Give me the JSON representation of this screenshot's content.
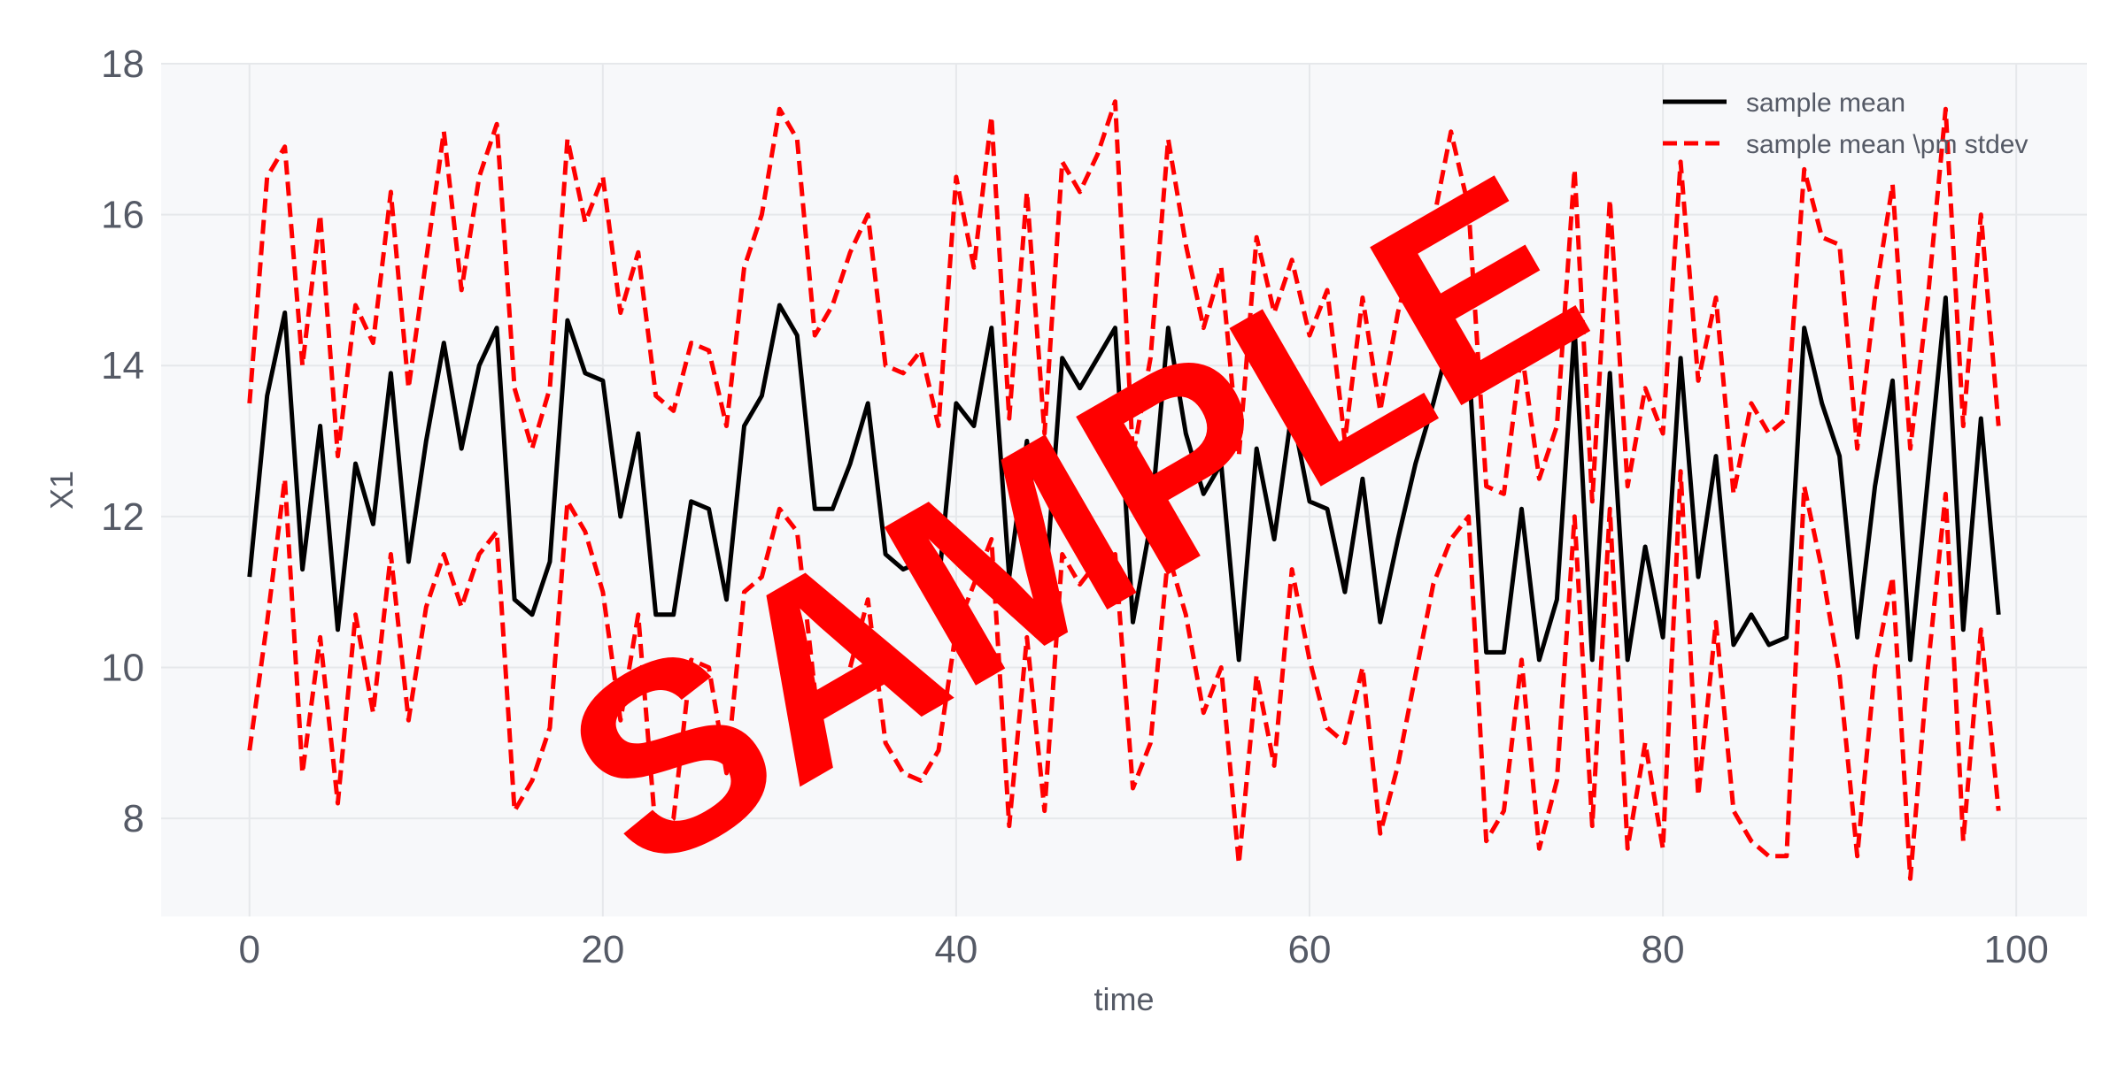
{
  "chart_data": {
    "type": "line",
    "title": "",
    "xlabel": "time",
    "ylabel": "X1",
    "xlim": [
      -5,
      104
    ],
    "ylim": [
      6.7,
      18
    ],
    "xticks": [
      0,
      20,
      40,
      60,
      80,
      100
    ],
    "yticks": [
      8,
      10,
      12,
      14,
      16,
      18
    ],
    "grid": true,
    "legend_position": "top-right",
    "x": [
      0,
      1,
      2,
      3,
      4,
      5,
      6,
      7,
      8,
      9,
      10,
      11,
      12,
      13,
      14,
      15,
      16,
      17,
      18,
      19,
      20,
      21,
      22,
      23,
      24,
      25,
      26,
      27,
      28,
      29,
      30,
      31,
      32,
      33,
      34,
      35,
      36,
      37,
      38,
      39,
      40,
      41,
      42,
      43,
      44,
      45,
      46,
      47,
      48,
      49,
      50,
      51,
      52,
      53,
      54,
      55,
      56,
      57,
      58,
      59,
      60,
      61,
      62,
      63,
      64,
      65,
      66,
      67,
      68,
      69,
      70,
      71,
      72,
      73,
      74,
      75,
      76,
      77,
      78,
      79,
      80,
      81,
      82,
      83,
      84,
      85,
      86,
      87,
      88,
      89,
      90,
      91,
      92,
      93,
      94,
      95,
      96,
      97,
      98,
      99
    ],
    "series": [
      {
        "name": "sample mean",
        "color": "#000000",
        "dash": "solid",
        "values": [
          11.2,
          13.6,
          14.7,
          11.3,
          13.2,
          10.5,
          12.7,
          11.9,
          13.9,
          11.4,
          13.0,
          14.3,
          12.9,
          14.0,
          14.5,
          10.9,
          10.7,
          11.4,
          14.6,
          13.9,
          13.8,
          12.0,
          13.1,
          10.7,
          10.7,
          12.2,
          12.1,
          10.9,
          13.2,
          13.6,
          14.8,
          14.4,
          12.1,
          12.1,
          12.7,
          13.5,
          11.5,
          11.3,
          11.4,
          11.1,
          13.5,
          13.2,
          14.5,
          11.2,
          13.0,
          10.9,
          14.1,
          13.7,
          14.1,
          14.5,
          10.6,
          11.9,
          14.5,
          13.1,
          12.3,
          12.7,
          10.1,
          12.9,
          11.7,
          13.4,
          12.2,
          12.1,
          11.0,
          12.5,
          10.6,
          11.7,
          12.7,
          13.5,
          14.4,
          14.1,
          10.2,
          10.2,
          12.1,
          10.1,
          10.9,
          14.5,
          10.1,
          13.9,
          10.1,
          11.6,
          10.4,
          14.1,
          11.2,
          12.8,
          10.3,
          10.7,
          10.3,
          10.4,
          14.5,
          13.5,
          12.8,
          10.4,
          12.4,
          13.8,
          10.1,
          12.5,
          14.9,
          10.5,
          13.3,
          10.7
        ]
      },
      {
        "name": "sample mean \\pm stdev",
        "color": "#ff0000",
        "dash": "dashed",
        "values": [
          13.5,
          16.5,
          16.9,
          14.0,
          16.0,
          12.8,
          14.8,
          14.3,
          16.3,
          13.7,
          15.4,
          17.1,
          15.0,
          16.5,
          17.2,
          13.7,
          12.9,
          13.7,
          17.0,
          15.9,
          16.5,
          14.7,
          15.5,
          13.6,
          13.4,
          14.3,
          14.2,
          13.2,
          15.3,
          16.0,
          17.4,
          17.0,
          14.4,
          14.8,
          15.5,
          16.0,
          14.0,
          13.9,
          14.2,
          13.2,
          16.5,
          15.3,
          17.3,
          13.3,
          16.3,
          13.1,
          16.7,
          16.3,
          16.8,
          17.5,
          12.8,
          14.1,
          17.0,
          15.6,
          14.5,
          15.3,
          12.8,
          15.7,
          14.7,
          15.4,
          14.4,
          15.0,
          13.0,
          14.9,
          13.4,
          14.7,
          15.6,
          15.9,
          17.1,
          16.1,
          12.4,
          12.3,
          14.2,
          12.5,
          13.2,
          16.6,
          12.2,
          16.2,
          12.4,
          13.7,
          13.1,
          16.7,
          13.8,
          14.9,
          12.3,
          13.5,
          13.1,
          13.3,
          16.6,
          15.7,
          15.6,
          12.9,
          14.9,
          16.4,
          12.9,
          14.9,
          17.4,
          13.2,
          16.0,
          13.2
        ]
      },
      {
        "name": "sample mean \\pm stdev",
        "color": "#ff0000",
        "dash": "dashed",
        "values": [
          8.9,
          10.6,
          12.5,
          8.6,
          10.4,
          8.2,
          10.7,
          9.4,
          11.5,
          9.3,
          10.8,
          11.5,
          10.8,
          11.5,
          11.8,
          8.1,
          8.5,
          9.2,
          12.2,
          11.8,
          11.0,
          9.3,
          10.7,
          7.8,
          8.0,
          10.1,
          10.0,
          8.6,
          11.0,
          11.2,
          12.1,
          11.8,
          9.7,
          9.4,
          10.0,
          10.9,
          9.0,
          8.6,
          8.5,
          8.9,
          10.5,
          11.1,
          11.7,
          7.9,
          10.4,
          8.1,
          11.5,
          11.1,
          11.4,
          11.5,
          8.4,
          9.0,
          11.5,
          10.7,
          9.4,
          10.0,
          7.4,
          9.9,
          8.7,
          11.3,
          10.1,
          9.2,
          9.0,
          10.0,
          7.8,
          8.7,
          9.9,
          11.1,
          11.7,
          12.0,
          7.7,
          8.1,
          10.1,
          7.6,
          8.5,
          12.0,
          7.9,
          12.1,
          7.6,
          9.0,
          7.6,
          12.6,
          8.3,
          10.6,
          8.1,
          7.7,
          7.5,
          7.5,
          12.4,
          11.3,
          9.9,
          7.5,
          10.0,
          11.2,
          7.2,
          10.0,
          12.3,
          7.7,
          10.5,
          8.1
        ]
      }
    ],
    "legend": [
      {
        "label": "sample mean",
        "color": "#000000",
        "dash": "solid"
      },
      {
        "label": "sample mean \\pm stdev",
        "color": "#ff0000",
        "dash": "dashed"
      }
    ]
  },
  "watermark": {
    "text": "SAMPLE",
    "color": "#ff0000"
  },
  "colors": {
    "plot_background": "#f7f8fa",
    "grid": "#e6e8eb",
    "tick_text": "#555a66"
  }
}
